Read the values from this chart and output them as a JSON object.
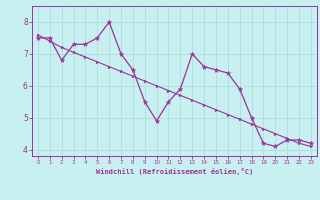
{
  "xlabel": "Windchill (Refroidissement éolien,°C)",
  "background_color": "#c8f0f0",
  "grid_color": "#b0e0e0",
  "line_color": "#993399",
  "x_hours": [
    0,
    1,
    2,
    3,
    4,
    5,
    6,
    7,
    8,
    9,
    10,
    11,
    12,
    13,
    14,
    15,
    16,
    17,
    18,
    19,
    20,
    21,
    22,
    23
  ],
  "windchill_values": [
    7.5,
    7.5,
    6.8,
    7.3,
    7.3,
    7.5,
    8.0,
    7.0,
    6.5,
    5.5,
    4.9,
    5.5,
    5.9,
    7.0,
    6.6,
    6.5,
    6.4,
    5.9,
    5.0,
    4.2,
    4.1,
    4.3,
    4.3,
    4.2
  ],
  "trend_y": [
    7.6,
    7.4,
    7.2,
    7.05,
    6.9,
    6.75,
    6.6,
    6.45,
    6.3,
    6.15,
    6.0,
    5.85,
    5.7,
    5.55,
    5.4,
    5.25,
    5.1,
    4.95,
    4.8,
    4.65,
    4.5,
    4.35,
    4.2,
    4.1
  ],
  "ylim": [
    3.8,
    8.5
  ],
  "yticks": [
    4,
    5,
    6,
    7,
    8
  ],
  "xticks": [
    0,
    1,
    2,
    3,
    4,
    5,
    6,
    7,
    8,
    9,
    10,
    11,
    12,
    13,
    14,
    15,
    16,
    17,
    18,
    19,
    20,
    21,
    22,
    23
  ]
}
